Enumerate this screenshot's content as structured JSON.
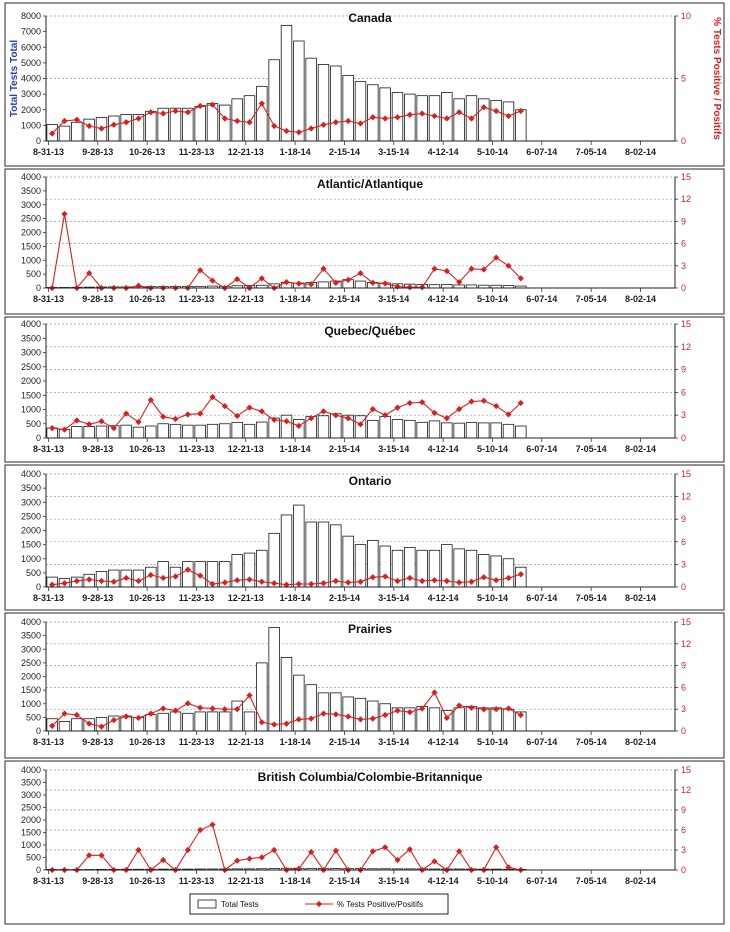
{
  "legend": {
    "bars_label": "Total Tests",
    "line_label": "% Tests Positive/Positifs"
  },
  "colors": {
    "bar_fill": "#ffffff",
    "bar_stroke": "#1a1a1a",
    "line": "#d91f1f",
    "left_axis_label": "#1f3fbf",
    "right_axis_label": "#d91f1f",
    "gridline": "#9a9a9a"
  },
  "chart_data": [
    {
      "type": "bar",
      "title": "Canada",
      "ylabel": "Total Tests Total",
      "y2label": "% Tests Positive / Positifs",
      "ylim": [
        0,
        8000
      ],
      "yticks": [
        "0",
        "1000",
        "2000",
        "3000",
        "4000",
        "5000",
        "6000",
        "7000",
        "8000"
      ],
      "y2lim": [
        0,
        10
      ],
      "y2ticks": [
        "0",
        "5",
        "10"
      ],
      "xtick_labels": [
        "8-31-13",
        "9-28-13",
        "10-26-13",
        "11-23-13",
        "12-21-13",
        "1-18-14",
        "2-15-14",
        "3-15-14",
        "4-12-14",
        "5-10-14",
        "6-07-14",
        "7-05-14",
        "8-02-14"
      ],
      "series": [
        {
          "name": "Total Tests",
          "values": [
            1050,
            950,
            1200,
            1400,
            1500,
            1600,
            1700,
            1700,
            1900,
            2100,
            2100,
            2100,
            2200,
            2400,
            2300,
            2700,
            2900,
            3500,
            5200,
            7400,
            6400,
            5300,
            4900,
            4800,
            4200,
            3800,
            3600,
            3400,
            3100,
            3000,
            2900,
            2900,
            3100,
            2700,
            2900,
            2700,
            2600,
            2500,
            2000,
            null,
            null,
            null,
            null,
            null,
            null,
            null,
            null,
            null,
            null,
            null,
            null
          ]
        },
        {
          "name": "% Tests Positive/Positifs",
          "values": [
            0.6,
            1.6,
            1.7,
            1.2,
            1.0,
            1.3,
            1.5,
            1.8,
            2.3,
            2.2,
            2.4,
            2.3,
            2.8,
            2.9,
            1.8,
            1.6,
            1.5,
            3.0,
            1.2,
            0.8,
            0.7,
            1.0,
            1.3,
            1.5,
            1.6,
            1.4,
            1.9,
            1.8,
            1.9,
            2.1,
            2.2,
            2.0,
            1.8,
            2.3,
            1.8,
            2.7,
            2.4,
            2.0,
            2.4,
            null,
            null,
            null,
            null,
            null,
            null,
            null,
            null,
            null,
            null,
            null,
            null
          ]
        }
      ]
    },
    {
      "type": "bar",
      "title": "Atlantic/Atlantique",
      "ylim": [
        0,
        4000
      ],
      "yticks": [
        "0",
        "500",
        "1000",
        "1500",
        "2000",
        "2500",
        "3000",
        "3500",
        "4000"
      ],
      "y2lim": [
        0,
        15
      ],
      "y2ticks": [
        "0",
        "3",
        "6",
        "9",
        "12",
        "15"
      ],
      "xtick_labels": [
        "8-31-13",
        "9-28-13",
        "10-26-13",
        "11-23-13",
        "12-21-13",
        "1-18-14",
        "2-15-14",
        "3-15-14",
        "4-12-14",
        "5-10-14",
        "6-07-14",
        "7-05-14",
        "8-02-14"
      ],
      "series": [
        {
          "name": "Total Tests",
          "values": [
            20,
            20,
            25,
            30,
            35,
            40,
            40,
            45,
            50,
            50,
            55,
            60,
            60,
            70,
            60,
            80,
            90,
            100,
            150,
            200,
            180,
            200,
            220,
            250,
            300,
            250,
            200,
            180,
            150,
            140,
            130,
            120,
            130,
            110,
            110,
            100,
            100,
            90,
            70,
            null,
            null,
            null,
            null,
            null,
            null,
            null,
            null,
            null,
            null,
            null,
            null
          ]
        },
        {
          "name": "% Tests Positive/Positifs",
          "values": [
            0,
            10,
            0,
            2.0,
            0,
            0,
            0,
            0.3,
            0,
            0,
            0,
            0,
            2.4,
            1.0,
            0,
            1.2,
            0,
            1.3,
            0,
            0.8,
            0.6,
            0.5,
            2.6,
            0.7,
            1.1,
            2.0,
            0.7,
            0.6,
            0.2,
            0.1,
            0.1,
            2.6,
            2.3,
            0.8,
            2.6,
            2.5,
            4.1,
            3.0,
            1.3,
            null,
            null,
            null,
            null,
            null,
            null,
            null,
            null,
            null,
            null,
            null,
            null
          ]
        }
      ]
    },
    {
      "type": "bar",
      "title": "Quebec/Québec",
      "ylim": [
        0,
        4000
      ],
      "yticks": [
        "0",
        "500",
        "1000",
        "1500",
        "2000",
        "2500",
        "3000",
        "3500",
        "4000"
      ],
      "y2lim": [
        0,
        15
      ],
      "y2ticks": [
        "0",
        "3",
        "6",
        "9",
        "12",
        "15"
      ],
      "xtick_labels": [
        "8-31-13",
        "9-28-13",
        "10-26-13",
        "11-23-13",
        "12-21-13",
        "1-18-14",
        "2-15-14",
        "3-15-14",
        "4-12-14",
        "5-10-14",
        "6-07-14",
        "7-05-14",
        "8-02-14"
      ],
      "series": [
        {
          "name": "Total Tests",
          "values": [
            350,
            300,
            400,
            400,
            420,
            430,
            450,
            380,
            420,
            500,
            480,
            450,
            450,
            480,
            500,
            550,
            480,
            560,
            700,
            800,
            650,
            750,
            780,
            850,
            800,
            780,
            620,
            750,
            650,
            620,
            550,
            600,
            530,
            520,
            540,
            530,
            530,
            480,
            420,
            null,
            null,
            null,
            null,
            null,
            null,
            null,
            null,
            null,
            null,
            null,
            null
          ]
        },
        {
          "name": "% Tests Positive/Positifs",
          "values": [
            1.3,
            1.1,
            2.3,
            1.8,
            2.2,
            1.3,
            3.2,
            2.1,
            5.0,
            2.8,
            2.5,
            3.1,
            3.2,
            5.4,
            4.2,
            2.9,
            4.0,
            3.5,
            2.4,
            2.2,
            1.6,
            2.6,
            3.5,
            3.0,
            2.6,
            1.8,
            3.8,
            3.0,
            4.0,
            4.6,
            4.7,
            3.3,
            2.6,
            3.8,
            4.8,
            4.9,
            4.2,
            3.1,
            4.6,
            null,
            null,
            null,
            null,
            null,
            null,
            null,
            null,
            null,
            null,
            null,
            null
          ]
        }
      ]
    },
    {
      "type": "bar",
      "title": "Ontario",
      "ylim": [
        0,
        4000
      ],
      "yticks": [
        "0",
        "500",
        "1000",
        "1500",
        "2000",
        "2500",
        "3000",
        "3500",
        "4000"
      ],
      "y2lim": [
        0,
        15
      ],
      "y2ticks": [
        "0",
        "3",
        "6",
        "9",
        "12",
        "15"
      ],
      "xtick_labels": [
        "8-31-13",
        "9-28-13",
        "10-26-13",
        "11-23-13",
        "12-21-13",
        "1-18-14",
        "2-15-14",
        "3-15-14",
        "4-12-14",
        "5-10-14",
        "6-07-14",
        "7-05-14",
        "8-02-14"
      ],
      "series": [
        {
          "name": "Total Tests",
          "values": [
            350,
            300,
            350,
            450,
            550,
            600,
            600,
            600,
            700,
            900,
            700,
            900,
            900,
            900,
            900,
            1150,
            1200,
            1300,
            1900,
            2550,
            2900,
            2300,
            2300,
            2200,
            1800,
            1500,
            1650,
            1450,
            1300,
            1400,
            1300,
            1300,
            1500,
            1350,
            1300,
            1150,
            1100,
            1000,
            700,
            null,
            null,
            null,
            null,
            null,
            null,
            null,
            null,
            null,
            null,
            null,
            null
          ]
        },
        {
          "name": "% Tests Positive/Positifs",
          "values": [
            0.3,
            0.5,
            0.8,
            1.0,
            0.8,
            0.7,
            1.2,
            0.8,
            1.6,
            1.2,
            1.4,
            2.3,
            1.5,
            0.4,
            0.6,
            0.9,
            1.0,
            0.7,
            0.5,
            0.3,
            0.4,
            0.4,
            0.5,
            0.8,
            0.6,
            0.7,
            1.3,
            1.4,
            0.8,
            1.2,
            0.8,
            0.9,
            0.8,
            0.6,
            0.7,
            1.3,
            0.9,
            1.2,
            1.7,
            null,
            null,
            null,
            null,
            null,
            null,
            null,
            null,
            null,
            null,
            null,
            null
          ]
        }
      ]
    },
    {
      "type": "bar",
      "title": "Prairies",
      "ylim": [
        0,
        4000
      ],
      "yticks": [
        "0",
        "500",
        "1000",
        "1500",
        "2000",
        "2500",
        "3000",
        "3500",
        "4000"
      ],
      "y2lim": [
        0,
        15
      ],
      "y2ticks": [
        "0",
        "3",
        "6",
        "9",
        "12",
        "15"
      ],
      "xtick_labels": [
        "8-31-13",
        "9-28-13",
        "10-26-13",
        "11-23-13",
        "12-21-13",
        "1-18-14",
        "2-15-14",
        "3-15-14",
        "4-12-14",
        "5-10-14",
        "6-07-14",
        "7-05-14",
        "8-02-14"
      ],
      "series": [
        {
          "name": "Total Tests",
          "values": [
            450,
            350,
            450,
            450,
            500,
            550,
            550,
            500,
            600,
            650,
            700,
            650,
            700,
            700,
            700,
            1100,
            700,
            2500,
            3800,
            2700,
            2050,
            1700,
            1400,
            1400,
            1250,
            1200,
            1100,
            1000,
            850,
            850,
            900,
            850,
            750,
            850,
            900,
            850,
            850,
            800,
            700,
            null,
            null,
            null,
            null,
            null,
            null,
            null,
            null,
            null,
            null,
            null,
            null
          ]
        },
        {
          "name": "% Tests Positive/Positifs",
          "values": [
            0.7,
            2.4,
            2.2,
            1.0,
            0.6,
            1.5,
            2.0,
            1.8,
            2.4,
            3.1,
            2.8,
            3.8,
            3.2,
            3.1,
            3.0,
            3.0,
            4.9,
            1.2,
            0.9,
            1.0,
            1.6,
            1.7,
            2.4,
            2.3,
            2.0,
            1.6,
            1.7,
            2.2,
            2.8,
            2.6,
            3.1,
            5.3,
            1.8,
            3.5,
            3.2,
            3.0,
            3.0,
            3.1,
            2.2,
            null,
            null,
            null,
            null,
            null,
            null,
            null,
            null,
            null,
            null,
            null,
            null
          ]
        }
      ]
    },
    {
      "type": "bar",
      "title": "British Columbia/Colombie-Britannique",
      "ylim": [
        0,
        4000
      ],
      "yticks": [
        "0",
        "500",
        "1000",
        "1500",
        "2000",
        "2500",
        "3000",
        "3500",
        "4000"
      ],
      "y2lim": [
        0,
        15
      ],
      "y2ticks": [
        "0",
        "3",
        "6",
        "9",
        "12",
        "15"
      ],
      "xtick_labels": [
        "8-31-13",
        "9-28-13",
        "10-26-13",
        "11-23-13",
        "12-21-13",
        "1-18-14",
        "2-15-14",
        "3-15-14",
        "4-12-14",
        "5-10-14",
        "6-07-14",
        "7-05-14",
        "8-02-14"
      ],
      "series": [
        {
          "name": "Total Tests",
          "values": [
            20,
            20,
            20,
            20,
            25,
            25,
            30,
            30,
            30,
            35,
            35,
            35,
            40,
            40,
            40,
            45,
            45,
            50,
            60,
            70,
            70,
            65,
            60,
            60,
            55,
            55,
            50,
            50,
            45,
            45,
            45,
            40,
            40,
            40,
            40,
            35,
            35,
            30,
            25,
            null,
            null,
            null,
            null,
            null,
            null,
            null,
            null,
            null,
            null,
            null,
            null
          ]
        },
        {
          "name": "% Tests Positive/Positifs",
          "values": [
            0,
            0,
            0,
            2.2,
            2.2,
            0,
            0,
            3.0,
            0,
            1.5,
            0,
            3.0,
            6.0,
            6.8,
            0,
            1.4,
            1.7,
            1.9,
            3.0,
            0,
            0.2,
            2.7,
            0,
            2.9,
            0,
            0,
            2.8,
            3.4,
            1.5,
            3.1,
            0,
            1.3,
            0,
            2.8,
            0,
            0,
            3.4,
            0.4,
            0,
            null,
            null,
            null,
            null,
            null,
            null,
            null,
            null,
            null,
            null,
            null,
            null
          ]
        }
      ]
    }
  ]
}
